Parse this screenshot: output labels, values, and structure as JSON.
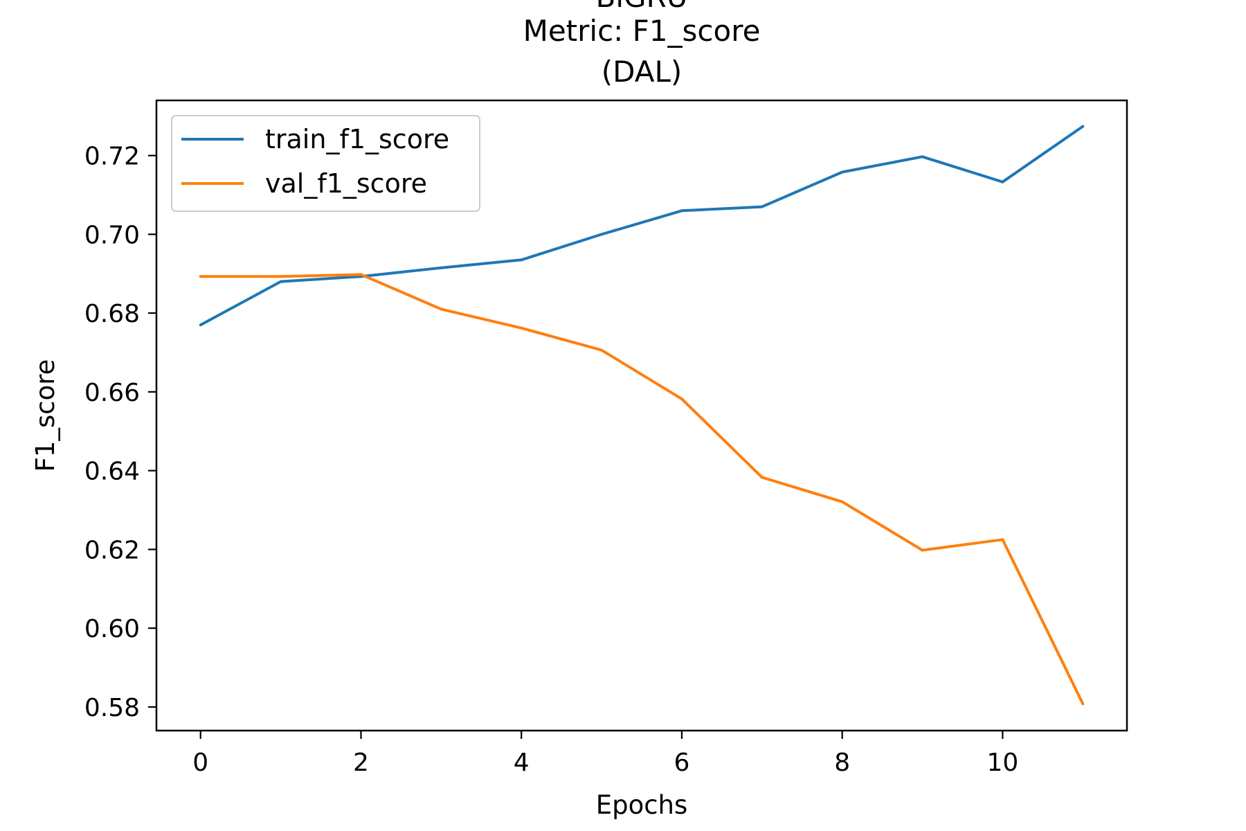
{
  "chart_data": {
    "type": "line",
    "title_lines": [
      "BiGRU",
      "Metric: F1_score",
      "(DAL)"
    ],
    "xlabel": "Epochs",
    "ylabel": "F1_score",
    "xlim": [
      -0.55,
      11.55
    ],
    "ylim": [
      0.574,
      0.734
    ],
    "xticks": [
      0,
      2,
      4,
      6,
      8,
      10
    ],
    "xtick_labels": [
      "0",
      "2",
      "4",
      "6",
      "8",
      "10"
    ],
    "yticks": [
      0.58,
      0.6,
      0.62,
      0.64,
      0.66,
      0.68,
      0.7,
      0.72
    ],
    "ytick_labels": [
      "0.58",
      "0.60",
      "0.62",
      "0.64",
      "0.66",
      "0.68",
      "0.70",
      "0.72"
    ],
    "grid": false,
    "legend_position": "top-left",
    "x": [
      0,
      1,
      2,
      3,
      4,
      5,
      6,
      7,
      8,
      9,
      10,
      11
    ],
    "series": [
      {
        "name": "train_f1_score",
        "color": "#1f77b4",
        "values": [
          0.677,
          0.688,
          0.6893,
          0.6915,
          0.6935,
          0.7,
          0.706,
          0.707,
          0.7158,
          0.7197,
          0.7133,
          0.7274
        ]
      },
      {
        "name": "val_f1_score",
        "color": "#ff7f0e",
        "values": [
          0.6893,
          0.6893,
          0.6898,
          0.681,
          0.6762,
          0.6706,
          0.6582,
          0.6383,
          0.6321,
          0.6198,
          0.6225,
          0.5808
        ]
      }
    ]
  }
}
